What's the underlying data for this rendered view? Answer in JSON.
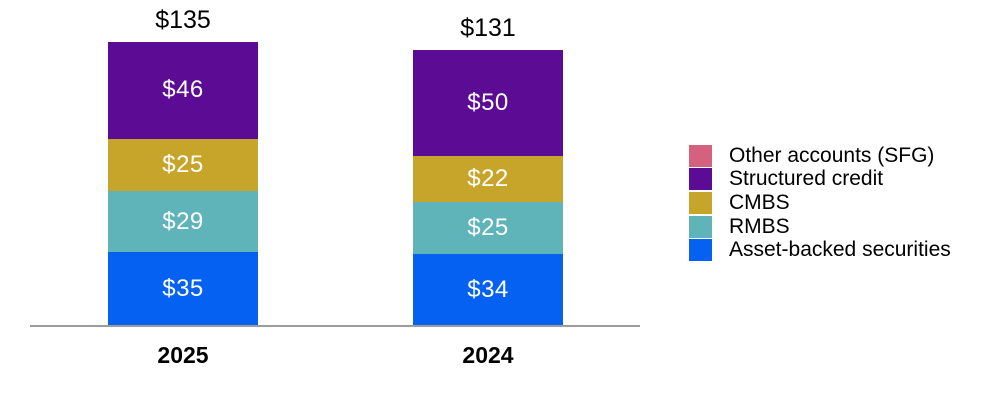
{
  "chart_data": {
    "type": "bar",
    "variant": "stacked-vertical",
    "title": "",
    "categories": [
      "2025",
      "2024"
    ],
    "totals": [
      "$135",
      "$131"
    ],
    "value_prefix": "$",
    "series": [
      {
        "name": "Other accounts (SFG)",
        "color": "#d4627e",
        "values": [
          0,
          0
        ]
      },
      {
        "name": "Structured credit",
        "color": "#5c0c94",
        "values": [
          46,
          50
        ]
      },
      {
        "name": "CMBS",
        "color": "#c7a52a",
        "values": [
          25,
          22
        ]
      },
      {
        "name": "RMBS",
        "color": "#5fb4ba",
        "values": [
          29,
          25
        ]
      },
      {
        "name": "Asset-backed securities",
        "color": "#0561f2",
        "values": [
          35,
          34
        ]
      }
    ],
    "stack_order_top_to_bottom": [
      "Structured credit",
      "CMBS",
      "RMBS",
      "Asset-backed securities"
    ],
    "legend_position": "right",
    "grid": false,
    "axis_line_color": "#9c9c9c",
    "inside_label_color": "#ffffff",
    "outside_label_color": "#000000"
  }
}
